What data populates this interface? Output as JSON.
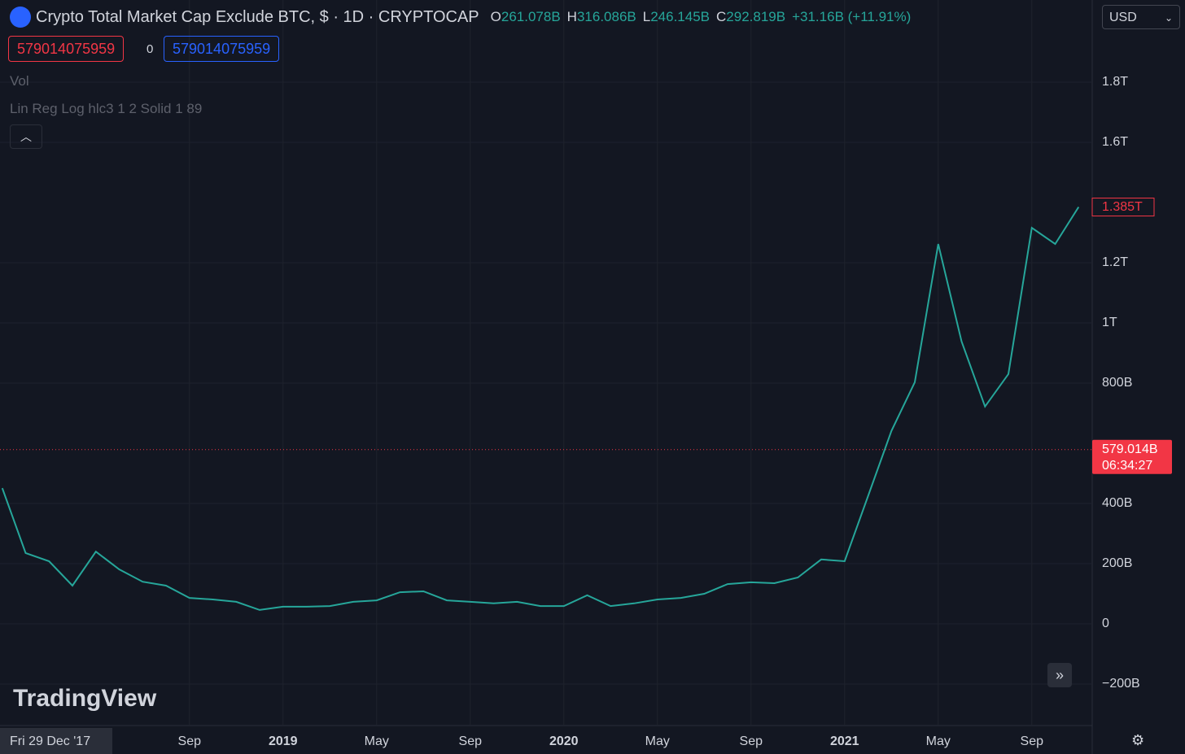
{
  "header": {
    "title": "Crypto Total Market Cap Exclude BTC, $ · 1D · CRYPTOCAP",
    "ohlc": [
      {
        "key": "O",
        "value": "261.078B"
      },
      {
        "key": "H",
        "value": "316.086B"
      },
      {
        "key": "L",
        "value": "246.145B"
      },
      {
        "key": "C",
        "value": "292.819B"
      }
    ],
    "change": "+31.16B (+11.91%)",
    "sell_box": "579014075959",
    "spread": "0",
    "buy_box": "579014075959",
    "indicators": [
      "Vol",
      "Lin Reg Log hlc3 1 2 Solid 1 89"
    ]
  },
  "toolbar": {
    "currency": "USD"
  },
  "watermark": "TradingView",
  "chart_data": {
    "type": "line",
    "color": "#26a69a",
    "x": [
      "2018-01",
      "2018-02",
      "2018-03",
      "2018-04",
      "2018-05",
      "2018-06",
      "2018-07",
      "2018-08",
      "2018-09",
      "2018-10",
      "2018-11",
      "2018-12",
      "2019-01",
      "2019-02",
      "2019-03",
      "2019-04",
      "2019-05",
      "2019-06",
      "2019-07",
      "2019-08",
      "2019-09",
      "2019-10",
      "2019-11",
      "2019-12",
      "2020-01",
      "2020-02",
      "2020-03",
      "2020-04",
      "2020-05",
      "2020-06",
      "2020-07",
      "2020-08",
      "2020-09",
      "2020-10",
      "2020-11",
      "2020-12",
      "2021-01",
      "2021-02",
      "2021-03",
      "2021-04",
      "2021-05",
      "2021-06",
      "2021-07",
      "2021-08",
      "2021-09",
      "2021-10",
      "2021-11"
    ],
    "values": [
      451,
      235,
      208,
      127,
      240,
      181,
      140,
      127,
      86,
      81,
      73,
      46,
      57,
      57,
      59,
      73,
      78,
      105,
      108,
      78,
      73,
      68,
      73,
      59,
      59,
      95,
      59,
      68,
      81,
      86,
      100,
      132,
      138,
      135,
      154,
      214,
      208,
      424,
      641,
      803,
      1262,
      938,
      722,
      830,
      1316,
      1262,
      1385
    ],
    "xlim": [
      "2017-12",
      "2021-12"
    ],
    "xticks": [
      {
        "value": "2018-09",
        "label": "Sep"
      },
      {
        "value": "2019-01",
        "label": "2019"
      },
      {
        "value": "2019-05",
        "label": "May"
      },
      {
        "value": "2019-09",
        "label": "Sep"
      },
      {
        "value": "2020-01",
        "label": "2020"
      },
      {
        "value": "2020-05",
        "label": "May"
      },
      {
        "value": "2020-09",
        "label": "Sep"
      },
      {
        "value": "2021-01",
        "label": "2021"
      },
      {
        "value": "2021-05",
        "label": "May"
      },
      {
        "value": "2021-09",
        "label": "Sep"
      }
    ],
    "ylim": [
      -338,
      2073
    ],
    "yticks": [
      {
        "value": -200,
        "label": "−200B"
      },
      0,
      {
        "value": 200,
        "label": "200B"
      },
      {
        "value": 400,
        "label": "400B"
      },
      {
        "value": 800,
        "label": "800B"
      },
      {
        "value": 1000,
        "label": "1T"
      },
      {
        "value": 1200,
        "label": "1.2T"
      },
      {
        "value": 1600,
        "label": "1.6T"
      },
      {
        "value": 1800,
        "label": "1.8T"
      }
    ],
    "grid": true,
    "last_price": {
      "value": 1385,
      "label": "1.385T"
    },
    "price_line": {
      "value": 579.014,
      "label": "579.014B",
      "countdown": "06:34:27"
    },
    "crosshair_date": "Fri 29 Dec '17"
  }
}
